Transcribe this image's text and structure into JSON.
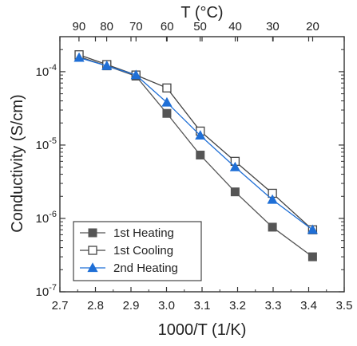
{
  "chart_data": {
    "type": "line",
    "xlabel": "1000/T (1/K)",
    "ylabel": "Conductivity (S/cm)",
    "top_xlabel": "T (°C)",
    "xlim": [
      2.7,
      3.5
    ],
    "ylim": [
      1e-07,
      0.0003
    ],
    "y_scale": "log",
    "x_ticks": [
      "2.7",
      "2.8",
      "2.9",
      "3.0",
      "3.1",
      "3.2",
      "3.3",
      "3.4",
      "3.5"
    ],
    "y_ticks": [
      {
        "base": "10",
        "exp": "-7"
      },
      {
        "base": "10",
        "exp": "-6"
      },
      {
        "base": "10",
        "exp": "-5"
      },
      {
        "base": "10",
        "exp": "-4"
      }
    ],
    "top_ticks": [
      "90",
      "80",
      "70",
      "60",
      "50",
      "40",
      "30",
      "20"
    ],
    "legend_position": "bottom-left",
    "series": [
      {
        "name": "1st Heating",
        "marker": "filled-square",
        "color": "#555555",
        "x": [
          2.754,
          2.832,
          2.914,
          3.001,
          3.095,
          3.193,
          3.298,
          3.411
        ],
        "y": [
          0.00016,
          0.00012,
          8.7e-05,
          2.7e-05,
          7.3e-06,
          2.3e-06,
          7.6e-07,
          3e-07
        ]
      },
      {
        "name": "1st Cooling",
        "marker": "open-square",
        "color": "#444444",
        "x": [
          2.754,
          2.832,
          2.914,
          3.001,
          3.095,
          3.193,
          3.298,
          3.411
        ],
        "y": [
          0.00017,
          0.000125,
          9e-05,
          6e-05,
          1.55e-05,
          6e-06,
          2.2e-06,
          7e-07
        ]
      },
      {
        "name": "2nd Heating",
        "marker": "filled-triangle",
        "color": "#1f6fd6",
        "x": [
          2.754,
          2.832,
          2.914,
          3.001,
          3.095,
          3.193,
          3.298,
          3.411
        ],
        "y": [
          0.000155,
          0.00012,
          9e-05,
          3.8e-05,
          1.35e-05,
          5e-06,
          1.8e-06,
          7e-07
        ]
      }
    ]
  }
}
